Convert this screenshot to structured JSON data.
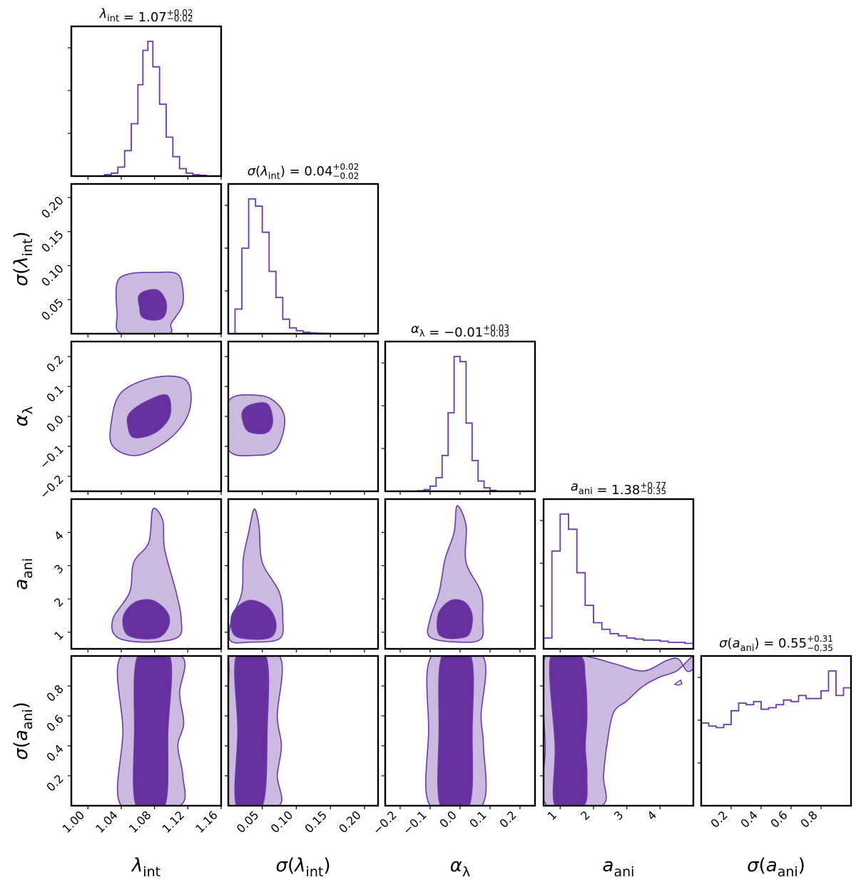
{
  "chart_data": {
    "type": "corner",
    "colors": {
      "line": "#6a3aa8",
      "fill_inner": "#66309e",
      "fill_outer": "#cbb9e0",
      "frame": "#000000"
    },
    "parameters": [
      {
        "key": "lambda_int",
        "label_base": "λ",
        "label_sub": "int",
        "label_wrap": false,
        "range": [
          0.98,
          1.16
        ],
        "ticks": [
          1.0,
          1.04,
          1.08,
          1.12,
          1.16
        ],
        "tick_labels": [
          "1.00",
          "1.04",
          "1.08",
          "1.12",
          "1.16"
        ],
        "title": {
          "name": "λ",
          "sub": "int",
          "wrap": false,
          "value": "1.07",
          "plus": "+0.02",
          "minus": "−0.02"
        }
      },
      {
        "key": "sigma_lambda_int",
        "label_base": "λ",
        "label_sub": "int",
        "label_wrap": true,
        "range": [
          0.0,
          0.22
        ],
        "ticks": [
          0.05,
          0.1,
          0.15,
          0.2
        ],
        "tick_labels": [
          "0.05",
          "0.10",
          "0.15",
          "0.20"
        ],
        "title": {
          "name": "λ",
          "sub": "int",
          "wrap": true,
          "value": "0.04",
          "plus": "+0.02",
          "minus": "−0.02"
        }
      },
      {
        "key": "alpha_lambda",
        "label_base": "α",
        "label_sub": "λ",
        "label_wrap": false,
        "range": [
          -0.25,
          0.25
        ],
        "ticks": [
          -0.2,
          -0.1,
          0.0,
          0.1,
          0.2
        ],
        "tick_labels": [
          "−0.2",
          "−0.1",
          "0.0",
          "0.1",
          "0.2"
        ],
        "title": {
          "name": "α",
          "sub": "λ",
          "wrap": false,
          "value": "−0.01",
          "plus": "+0.03",
          "minus": "−0.03"
        }
      },
      {
        "key": "a_ani",
        "label_base": "a",
        "label_sub": "ani",
        "label_wrap": false,
        "range": [
          0.5,
          5.0
        ],
        "ticks": [
          1,
          2,
          3,
          4
        ],
        "tick_labels": [
          "1",
          "2",
          "3",
          "4"
        ],
        "title": {
          "name": "a",
          "sub": "ani",
          "wrap": false,
          "value": "1.38",
          "plus": "+0.77",
          "minus": "−0.35"
        }
      },
      {
        "key": "sigma_a_ani",
        "label_base": "a",
        "label_sub": "ani",
        "label_wrap": true,
        "range": [
          0.0,
          1.0
        ],
        "ticks": [
          0.2,
          0.4,
          0.6,
          0.8
        ],
        "tick_labels": [
          "0.2",
          "0.4",
          "0.6",
          "0.8"
        ],
        "title": {
          "name": "a",
          "sub": "ani",
          "wrap": true,
          "value": "0.55",
          "plus": "+0.31",
          "minus": "−0.35"
        }
      }
    ],
    "histograms": [
      {
        "param": 0,
        "edges": [
          1.02,
          1.028,
          1.036,
          1.044,
          1.052,
          1.06,
          1.066,
          1.072,
          1.078,
          1.086,
          1.094,
          1.102,
          1.11,
          1.118,
          1.126,
          1.134,
          1.142
        ],
        "counts": [
          0.01,
          0.02,
          0.06,
          0.17,
          0.35,
          0.61,
          0.84,
          0.9,
          0.73,
          0.48,
          0.26,
          0.13,
          0.05,
          0.02,
          0.01,
          0.005
        ]
      },
      {
        "param": 1,
        "edges": [
          0.0,
          0.01,
          0.02,
          0.03,
          0.04,
          0.05,
          0.06,
          0.07,
          0.08,
          0.09,
          0.1,
          0.11,
          0.12,
          0.13,
          0.14,
          0.15
        ],
        "counts": [
          0.0,
          0.17,
          0.59,
          0.93,
          0.88,
          0.7,
          0.43,
          0.25,
          0.1,
          0.04,
          0.02,
          0.01,
          0.005,
          0.003,
          0.002
        ]
      },
      {
        "param": 2,
        "edges": [
          -0.14,
          -0.12,
          -0.1,
          -0.08,
          -0.06,
          -0.04,
          -0.02,
          0.0,
          0.02,
          0.04,
          0.06,
          0.08,
          0.1,
          0.12
        ],
        "counts": [
          0.003,
          0.01,
          0.03,
          0.08,
          0.21,
          0.46,
          0.79,
          0.76,
          0.4,
          0.18,
          0.06,
          0.02,
          0.005
        ]
      },
      {
        "param": 3,
        "edges": [
          0.5,
          0.75,
          1.0,
          1.25,
          1.5,
          1.75,
          2.0,
          2.25,
          2.5,
          2.75,
          3.0,
          3.25,
          3.5,
          3.75,
          4.0,
          4.25,
          4.5,
          4.75,
          5.0
        ],
        "counts": [
          0.05,
          0.45,
          0.62,
          0.55,
          0.35,
          0.2,
          0.12,
          0.09,
          0.07,
          0.06,
          0.05,
          0.045,
          0.04,
          0.04,
          0.035,
          0.03,
          0.03,
          0.025
        ]
      },
      {
        "param": 4,
        "edges": [
          0.0,
          0.05,
          0.1,
          0.15,
          0.2,
          0.25,
          0.3,
          0.35,
          0.4,
          0.45,
          0.5,
          0.55,
          0.6,
          0.65,
          0.7,
          0.75,
          0.8,
          0.85,
          0.9,
          0.95,
          1.0
        ],
        "counts": [
          0.54,
          0.52,
          0.51,
          0.53,
          0.62,
          0.67,
          0.66,
          0.68,
          0.63,
          0.64,
          0.66,
          0.69,
          0.68,
          0.72,
          0.7,
          0.7,
          0.75,
          0.88,
          0.72,
          0.77
        ]
      }
    ],
    "contours": [
      {
        "x": 0,
        "y": 1,
        "outer": [
          [
            1.04,
            0.0
          ],
          [
            1.035,
            0.03
          ],
          [
            1.035,
            0.075
          ],
          [
            1.05,
            0.088
          ],
          [
            1.08,
            0.09
          ],
          [
            1.107,
            0.088
          ],
          [
            1.114,
            0.065
          ],
          [
            1.113,
            0.04
          ],
          [
            1.1,
            0.015
          ],
          [
            1.096,
            0.0
          ]
        ],
        "inner": [
          [
            1.062,
            0.04
          ],
          [
            1.065,
            0.025
          ],
          [
            1.078,
            0.02
          ],
          [
            1.091,
            0.025
          ],
          [
            1.094,
            0.045
          ],
          [
            1.085,
            0.063
          ],
          [
            1.07,
            0.063
          ],
          [
            1.061,
            0.055
          ]
        ]
      },
      {
        "x": 0,
        "y": 2,
        "outer": [
          [
            1.028,
            -0.02
          ],
          [
            1.03,
            -0.1
          ],
          [
            1.06,
            -0.13
          ],
          [
            1.1,
            -0.07
          ],
          [
            1.122,
            0.02
          ],
          [
            1.118,
            0.12
          ],
          [
            1.08,
            0.13
          ],
          [
            1.04,
            0.08
          ]
        ],
        "inner": [
          [
            1.048,
            -0.03
          ],
          [
            1.055,
            -0.07
          ],
          [
            1.08,
            -0.055
          ],
          [
            1.098,
            0.0
          ],
          [
            1.095,
            0.07
          ],
          [
            1.07,
            0.05
          ],
          [
            1.05,
            0.01
          ]
        ]
      },
      {
        "x": 1,
        "y": 2,
        "outer": [
          [
            0.0,
            0.05
          ],
          [
            0.045,
            0.07
          ],
          [
            0.073,
            0.04
          ],
          [
            0.083,
            -0.02
          ],
          [
            0.07,
            -0.11
          ],
          [
            0.04,
            -0.13
          ],
          [
            0.0,
            -0.11
          ]
        ],
        "inner": [
          [
            0.021,
            -0.01
          ],
          [
            0.03,
            -0.05
          ],
          [
            0.055,
            -0.055
          ],
          [
            0.065,
            -0.02
          ],
          [
            0.058,
            0.04
          ],
          [
            0.035,
            0.04
          ],
          [
            0.022,
            0.02
          ]
        ]
      },
      {
        "x": 0,
        "y": 3,
        "outer": [
          [
            1.035,
            0.85
          ],
          [
            1.03,
            1.4
          ],
          [
            1.05,
            2.2
          ],
          [
            1.055,
            3.1
          ],
          [
            1.073,
            3.7
          ],
          [
            1.078,
            4.7
          ],
          [
            1.09,
            4.35
          ],
          [
            1.092,
            3.5
          ],
          [
            1.106,
            2.2
          ],
          [
            1.112,
            1.4
          ],
          [
            1.108,
            0.85
          ],
          [
            1.07,
            0.7
          ]
        ],
        "inner": [
          [
            1.045,
            1.0
          ],
          [
            1.043,
            1.5
          ],
          [
            1.057,
            1.9
          ],
          [
            1.078,
            1.95
          ],
          [
            1.095,
            1.6
          ],
          [
            1.097,
            1.2
          ],
          [
            1.085,
            0.85
          ],
          [
            1.06,
            0.82
          ]
        ]
      },
      {
        "x": 1,
        "y": 3,
        "outer": [
          [
            0.003,
            0.75
          ],
          [
            0.005,
            1.4
          ],
          [
            0.02,
            2.2
          ],
          [
            0.022,
            3.2
          ],
          [
            0.03,
            4.0
          ],
          [
            0.038,
            4.7
          ],
          [
            0.045,
            4.2
          ],
          [
            0.05,
            3.1
          ],
          [
            0.075,
            2.2
          ],
          [
            0.08,
            1.4
          ],
          [
            0.075,
            0.8
          ],
          [
            0.03,
            0.7
          ]
        ],
        "inner": [
          [
            0.008,
            0.95
          ],
          [
            0.006,
            1.55
          ],
          [
            0.03,
            1.95
          ],
          [
            0.058,
            1.75
          ],
          [
            0.07,
            1.25
          ],
          [
            0.062,
            0.85
          ],
          [
            0.03,
            0.8
          ]
        ]
      },
      {
        "x": 2,
        "y": 3,
        "outer": [
          [
            -0.1,
            0.85
          ],
          [
            -0.1,
            1.4
          ],
          [
            -0.07,
            2.2
          ],
          [
            -0.05,
            3.2
          ],
          [
            -0.02,
            4.0
          ],
          [
            -0.01,
            4.8
          ],
          [
            0.02,
            4.2
          ],
          [
            0.02,
            3.1
          ],
          [
            0.07,
            2.2
          ],
          [
            0.075,
            1.4
          ],
          [
            0.07,
            0.8
          ],
          [
            0.0,
            0.7
          ]
        ],
        "inner": [
          [
            -0.075,
            1.05
          ],
          [
            -0.07,
            1.6
          ],
          [
            -0.03,
            1.95
          ],
          [
            0.015,
            1.9
          ],
          [
            0.04,
            1.5
          ],
          [
            0.03,
            0.95
          ],
          [
            -0.01,
            0.82
          ],
          [
            -0.055,
            0.85
          ]
        ]
      },
      {
        "x": 0,
        "y": 4,
        "outer": [
          [
            1.04,
            0.0
          ],
          [
            1.042,
            0.5
          ],
          [
            1.04,
            1.0
          ],
          [
            1.112,
            1.0
          ],
          [
            1.11,
            0.75
          ],
          [
            1.115,
            0.55
          ],
          [
            1.108,
            0.4
          ],
          [
            1.114,
            0.2
          ],
          [
            1.11,
            0.0
          ]
        ],
        "inner": [
          [
            1.058,
            0.0
          ],
          [
            1.056,
            0.5
          ],
          [
            1.06,
            1.0
          ],
          [
            1.098,
            1.0
          ],
          [
            1.096,
            0.5
          ],
          [
            1.092,
            0.0
          ]
        ]
      },
      {
        "x": 1,
        "y": 4,
        "outer": [
          [
            0.0,
            0.0
          ],
          [
            0.001,
            0.9
          ],
          [
            0.003,
            1.0
          ],
          [
            0.075,
            1.0
          ],
          [
            0.072,
            0.6
          ],
          [
            0.078,
            0.4
          ],
          [
            0.072,
            0.2
          ],
          [
            0.074,
            0.0
          ]
        ],
        "inner": [
          [
            0.012,
            0.0
          ],
          [
            0.014,
            0.5
          ],
          [
            0.012,
            1.0
          ],
          [
            0.055,
            1.0
          ],
          [
            0.057,
            0.5
          ],
          [
            0.05,
            0.0
          ]
        ]
      },
      {
        "x": 2,
        "y": 4,
        "outer": [
          [
            -0.1,
            0.0
          ],
          [
            -0.105,
            0.5
          ],
          [
            -0.095,
            1.0
          ],
          [
            0.075,
            1.0
          ],
          [
            0.07,
            0.6
          ],
          [
            0.078,
            0.4
          ],
          [
            0.072,
            0.0
          ]
        ],
        "inner": [
          [
            -0.065,
            0.0
          ],
          [
            -0.07,
            0.5
          ],
          [
            -0.06,
            1.0
          ],
          [
            0.035,
            1.0
          ],
          [
            0.04,
            0.5
          ],
          [
            0.03,
            0.0
          ]
        ]
      },
      {
        "x": 3,
        "y": 4,
        "outer": [
          [
            0.6,
            0.0
          ],
          [
            0.55,
            0.4
          ],
          [
            0.55,
            1.0
          ],
          [
            1.7,
            1.0
          ],
          [
            2.6,
            0.95
          ],
          [
            3.5,
            0.9
          ],
          [
            4.2,
            0.97
          ],
          [
            4.55,
            0.98
          ],
          [
            4.8,
            0.9
          ],
          [
            5.0,
            0.92
          ],
          [
            5.0,
            1.0
          ],
          [
            4.5,
            0.9
          ],
          [
            4.0,
            0.86
          ],
          [
            3.5,
            0.8
          ],
          [
            3.0,
            0.7
          ],
          [
            2.6,
            0.62
          ],
          [
            2.4,
            0.4
          ],
          [
            2.3,
            0.2
          ],
          [
            2.25,
            0.0
          ]
        ],
        "inner": [
          [
            0.85,
            0.0
          ],
          [
            0.85,
            0.4
          ],
          [
            0.72,
            1.0
          ],
          [
            1.6,
            1.0
          ],
          [
            1.75,
            0.85
          ],
          [
            1.8,
            0.6
          ],
          [
            1.75,
            0.4
          ],
          [
            1.8,
            0.2
          ],
          [
            1.7,
            0.0
          ]
        ]
      }
    ]
  }
}
